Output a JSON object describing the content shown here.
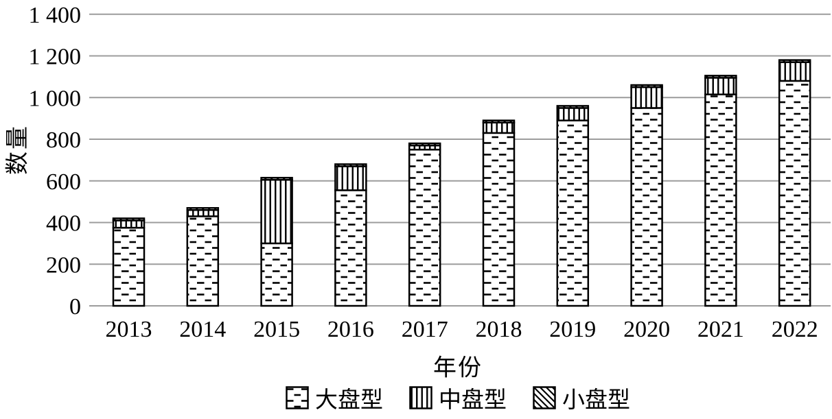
{
  "chart_data": {
    "type": "bar",
    "stacked": true,
    "title": "",
    "xlabel": "年份",
    "ylabel": "数量",
    "categories": [
      "2013",
      "2014",
      "2015",
      "2016",
      "2017",
      "2018",
      "2019",
      "2020",
      "2021",
      "2022"
    ],
    "series": [
      {
        "name": "大盘型",
        "key": "large-cap",
        "pattern": "horizontal-dashes",
        "values": [
          375,
          430,
          300,
          555,
          750,
          830,
          890,
          950,
          1015,
          1080
        ]
      },
      {
        "name": "中盘型",
        "key": "mid-cap",
        "pattern": "vertical-lines",
        "values": [
          35,
          30,
          305,
          115,
          20,
          50,
          60,
          100,
          80,
          90
        ]
      },
      {
        "name": "小盘型",
        "key": "small-cap",
        "pattern": "diagonal-lines",
        "values": [
          10,
          10,
          10,
          10,
          10,
          10,
          10,
          10,
          10,
          10
        ]
      }
    ],
    "totals": [
      420,
      470,
      615,
      680,
      780,
      890,
      960,
      1060,
      1105,
      1180
    ],
    "ylim": [
      0,
      1400
    ],
    "ytick_step": 200,
    "ytick_labels": [
      "0",
      "200",
      "400",
      "600",
      "800",
      "1 000",
      "1 200",
      "1 400"
    ],
    "grid": true,
    "legend_position": "bottom",
    "colors": {
      "bar_fill": "#ffffff",
      "bar_border": "#000000",
      "gridline": "#9c9c9c",
      "text": "#000000"
    }
  }
}
